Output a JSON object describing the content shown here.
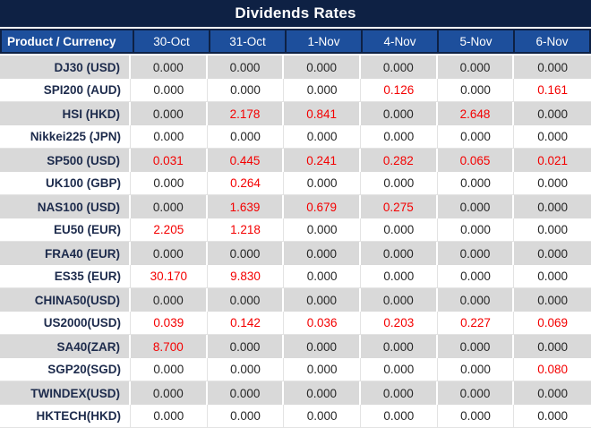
{
  "title": "Dividends Rates",
  "colors": {
    "title_bar_bg": "#0e2144",
    "header_bg": "#1d4f9c",
    "header_text": "#ffffff",
    "alt_row_bg": "#d9d9d9",
    "product_text": "#1d2b4c",
    "value_text": "#262626",
    "highlight_value_text": "#f40000"
  },
  "chart_data": {
    "type": "table",
    "title": "Dividends Rates",
    "columns": [
      "Product / Currency",
      "30-Oct",
      "31-Oct",
      "1-Nov",
      "4-Nov",
      "5-Nov",
      "6-Nov"
    ],
    "rows": [
      {
        "product": "DJ30 (USD)",
        "values": [
          "0.000",
          "0.000",
          "0.000",
          "0.000",
          "0.000",
          "0.000"
        ]
      },
      {
        "product": "SPI200 (AUD)",
        "values": [
          "0.000",
          "0.000",
          "0.000",
          "0.126",
          "0.000",
          "0.161"
        ]
      },
      {
        "product": "HSI (HKD)",
        "values": [
          "0.000",
          "2.178",
          "0.841",
          "0.000",
          "2.648",
          "0.000"
        ]
      },
      {
        "product": "Nikkei225 (JPN)",
        "values": [
          "0.000",
          "0.000",
          "0.000",
          "0.000",
          "0.000",
          "0.000"
        ]
      },
      {
        "product": "SP500 (USD)",
        "values": [
          "0.031",
          "0.445",
          "0.241",
          "0.282",
          "0.065",
          "0.021"
        ]
      },
      {
        "product": "UK100 (GBP)",
        "values": [
          "0.000",
          "0.264",
          "0.000",
          "0.000",
          "0.000",
          "0.000"
        ]
      },
      {
        "product": "NAS100 (USD)",
        "values": [
          "0.000",
          "1.639",
          "0.679",
          "0.275",
          "0.000",
          "0.000"
        ]
      },
      {
        "product": "EU50 (EUR)",
        "values": [
          "2.205",
          "1.218",
          "0.000",
          "0.000",
          "0.000",
          "0.000"
        ]
      },
      {
        "product": "FRA40 (EUR)",
        "values": [
          "0.000",
          "0.000",
          "0.000",
          "0.000",
          "0.000",
          "0.000"
        ]
      },
      {
        "product": "ES35 (EUR)",
        "values": [
          "30.170",
          "9.830",
          "0.000",
          "0.000",
          "0.000",
          "0.000"
        ]
      },
      {
        "product": "CHINA50(USD)",
        "values": [
          "0.000",
          "0.000",
          "0.000",
          "0.000",
          "0.000",
          "0.000"
        ]
      },
      {
        "product": "US2000(USD)",
        "values": [
          "0.039",
          "0.142",
          "0.036",
          "0.203",
          "0.227",
          "0.069"
        ]
      },
      {
        "product": "SA40(ZAR)",
        "values": [
          "8.700",
          "0.000",
          "0.000",
          "0.000",
          "0.000",
          "0.000"
        ]
      },
      {
        "product": "SGP20(SGD)",
        "values": [
          "0.000",
          "0.000",
          "0.000",
          "0.000",
          "0.000",
          "0.080"
        ]
      },
      {
        "product": "TWINDEX(USD)",
        "values": [
          "0.000",
          "0.000",
          "0.000",
          "0.000",
          "0.000",
          "0.000"
        ]
      },
      {
        "product": "HKTECH(HKD)",
        "values": [
          "0.000",
          "0.000",
          "0.000",
          "0.000",
          "0.000",
          "0.000"
        ]
      }
    ]
  }
}
